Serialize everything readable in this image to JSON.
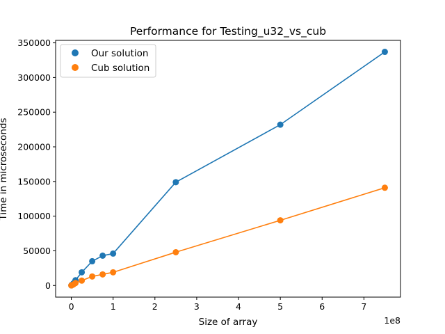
{
  "chart_data": {
    "type": "scatter",
    "title": "Performance for Testing_u32_vs_cub",
    "xlabel": "Size of array",
    "ylabel": "Time in microseconds",
    "x_offset_text": "1e8",
    "xlim": [
      -0.375,
      7.875
    ],
    "ylim": [
      -16800,
      353600
    ],
    "xticks": [
      0,
      1,
      2,
      3,
      4,
      5,
      6,
      7
    ],
    "xtick_labels": [
      "0",
      "1",
      "2",
      "3",
      "4",
      "5",
      "6",
      "7"
    ],
    "yticks": [
      0,
      50000,
      100000,
      150000,
      200000,
      250000,
      300000,
      350000
    ],
    "ytick_labels": [
      "0",
      "50000",
      "100000",
      "150000",
      "200000",
      "250000",
      "300000",
      "350000"
    ],
    "legend_position": "top-left",
    "series": [
      {
        "name": "Our solution",
        "color": "#1f77b4",
        "x": [
          0.001,
          0.01,
          0.05,
          0.1,
          0.25,
          0.5,
          0.75,
          1.0,
          2.5,
          5.0,
          7.5
        ],
        "y": [
          100,
          800,
          3000,
          7500,
          19000,
          35000,
          43000,
          46000,
          149000,
          232000,
          337000
        ]
      },
      {
        "name": "Cub solution",
        "color": "#ff7f0e",
        "x": [
          0.001,
          0.01,
          0.05,
          0.1,
          0.25,
          0.5,
          0.75,
          1.0,
          2.5,
          5.0,
          7.5
        ],
        "y": [
          80,
          300,
          1500,
          3500,
          7000,
          13000,
          16000,
          19000,
          48000,
          94000,
          141000
        ]
      }
    ]
  }
}
